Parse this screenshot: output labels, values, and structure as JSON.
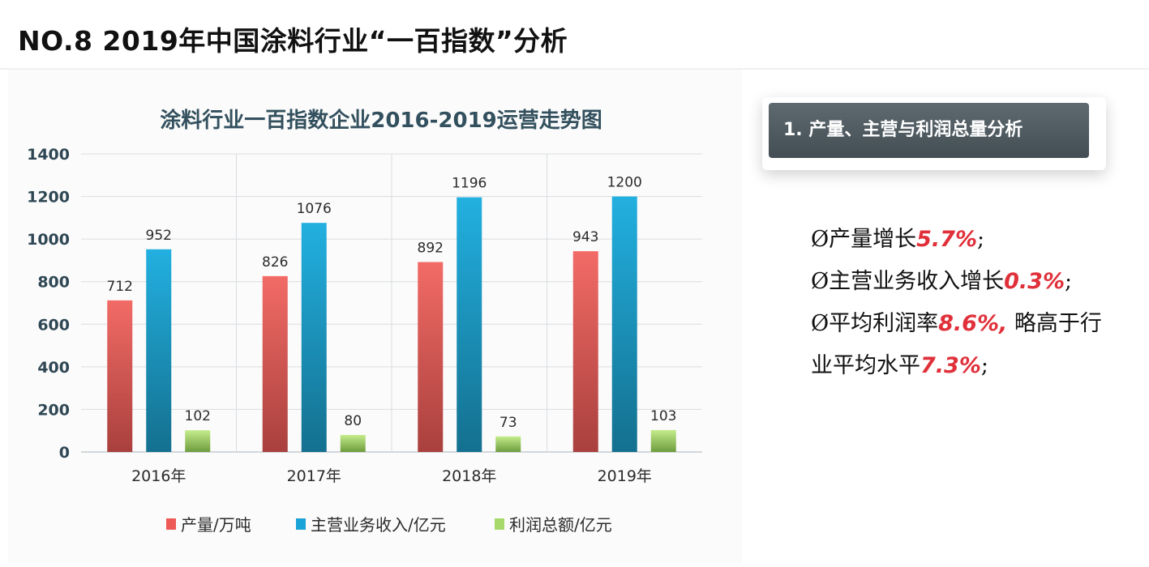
{
  "page_title": "NO.8  2019年中国涂料行业“一百指数”分析",
  "section_header": "1. 产量、主营与利润总量分析",
  "bullets": {
    "b1": {
      "marker": "Ø",
      "text": "产量增长",
      "value": "5.7%",
      "end": ";"
    },
    "b2": {
      "marker": "Ø",
      "text": "主营业务收入增长",
      "value": "0.3%",
      "end": ";"
    },
    "b3": {
      "marker": "Ø",
      "text": "平均利润率",
      "value": "8.6%,",
      "rest": " 略高于行"
    },
    "b4": {
      "text": "业平均水平",
      "value": "7.3%",
      "end": ";"
    }
  },
  "colors": {
    "accent_red": "#e0303a",
    "header_box": "#4f5a60"
  },
  "chart_data": {
    "type": "bar",
    "title": "涂料行业一百指数企业2016-2019运营走势图",
    "categories": [
      "2016年",
      "2017年",
      "2018年",
      "2019年"
    ],
    "series": [
      {
        "name": "产量/万吨",
        "values": [
          712,
          826,
          892,
          943
        ],
        "color": "#ee5a56"
      },
      {
        "name": "主营业务收入/亿元",
        "values": [
          952,
          1076,
          1196,
          1200
        ],
        "color": "#1aa3d6"
      },
      {
        "name": "利润总额/亿元",
        "values": [
          102,
          80,
          73,
          103
        ],
        "color": "#a6d96a"
      }
    ],
    "ylim": [
      0,
      1400
    ],
    "yticks": [
      0,
      200,
      400,
      600,
      800,
      1000,
      1200,
      1400
    ],
    "grid": true,
    "legend": "bottom",
    "data_labels": true
  }
}
